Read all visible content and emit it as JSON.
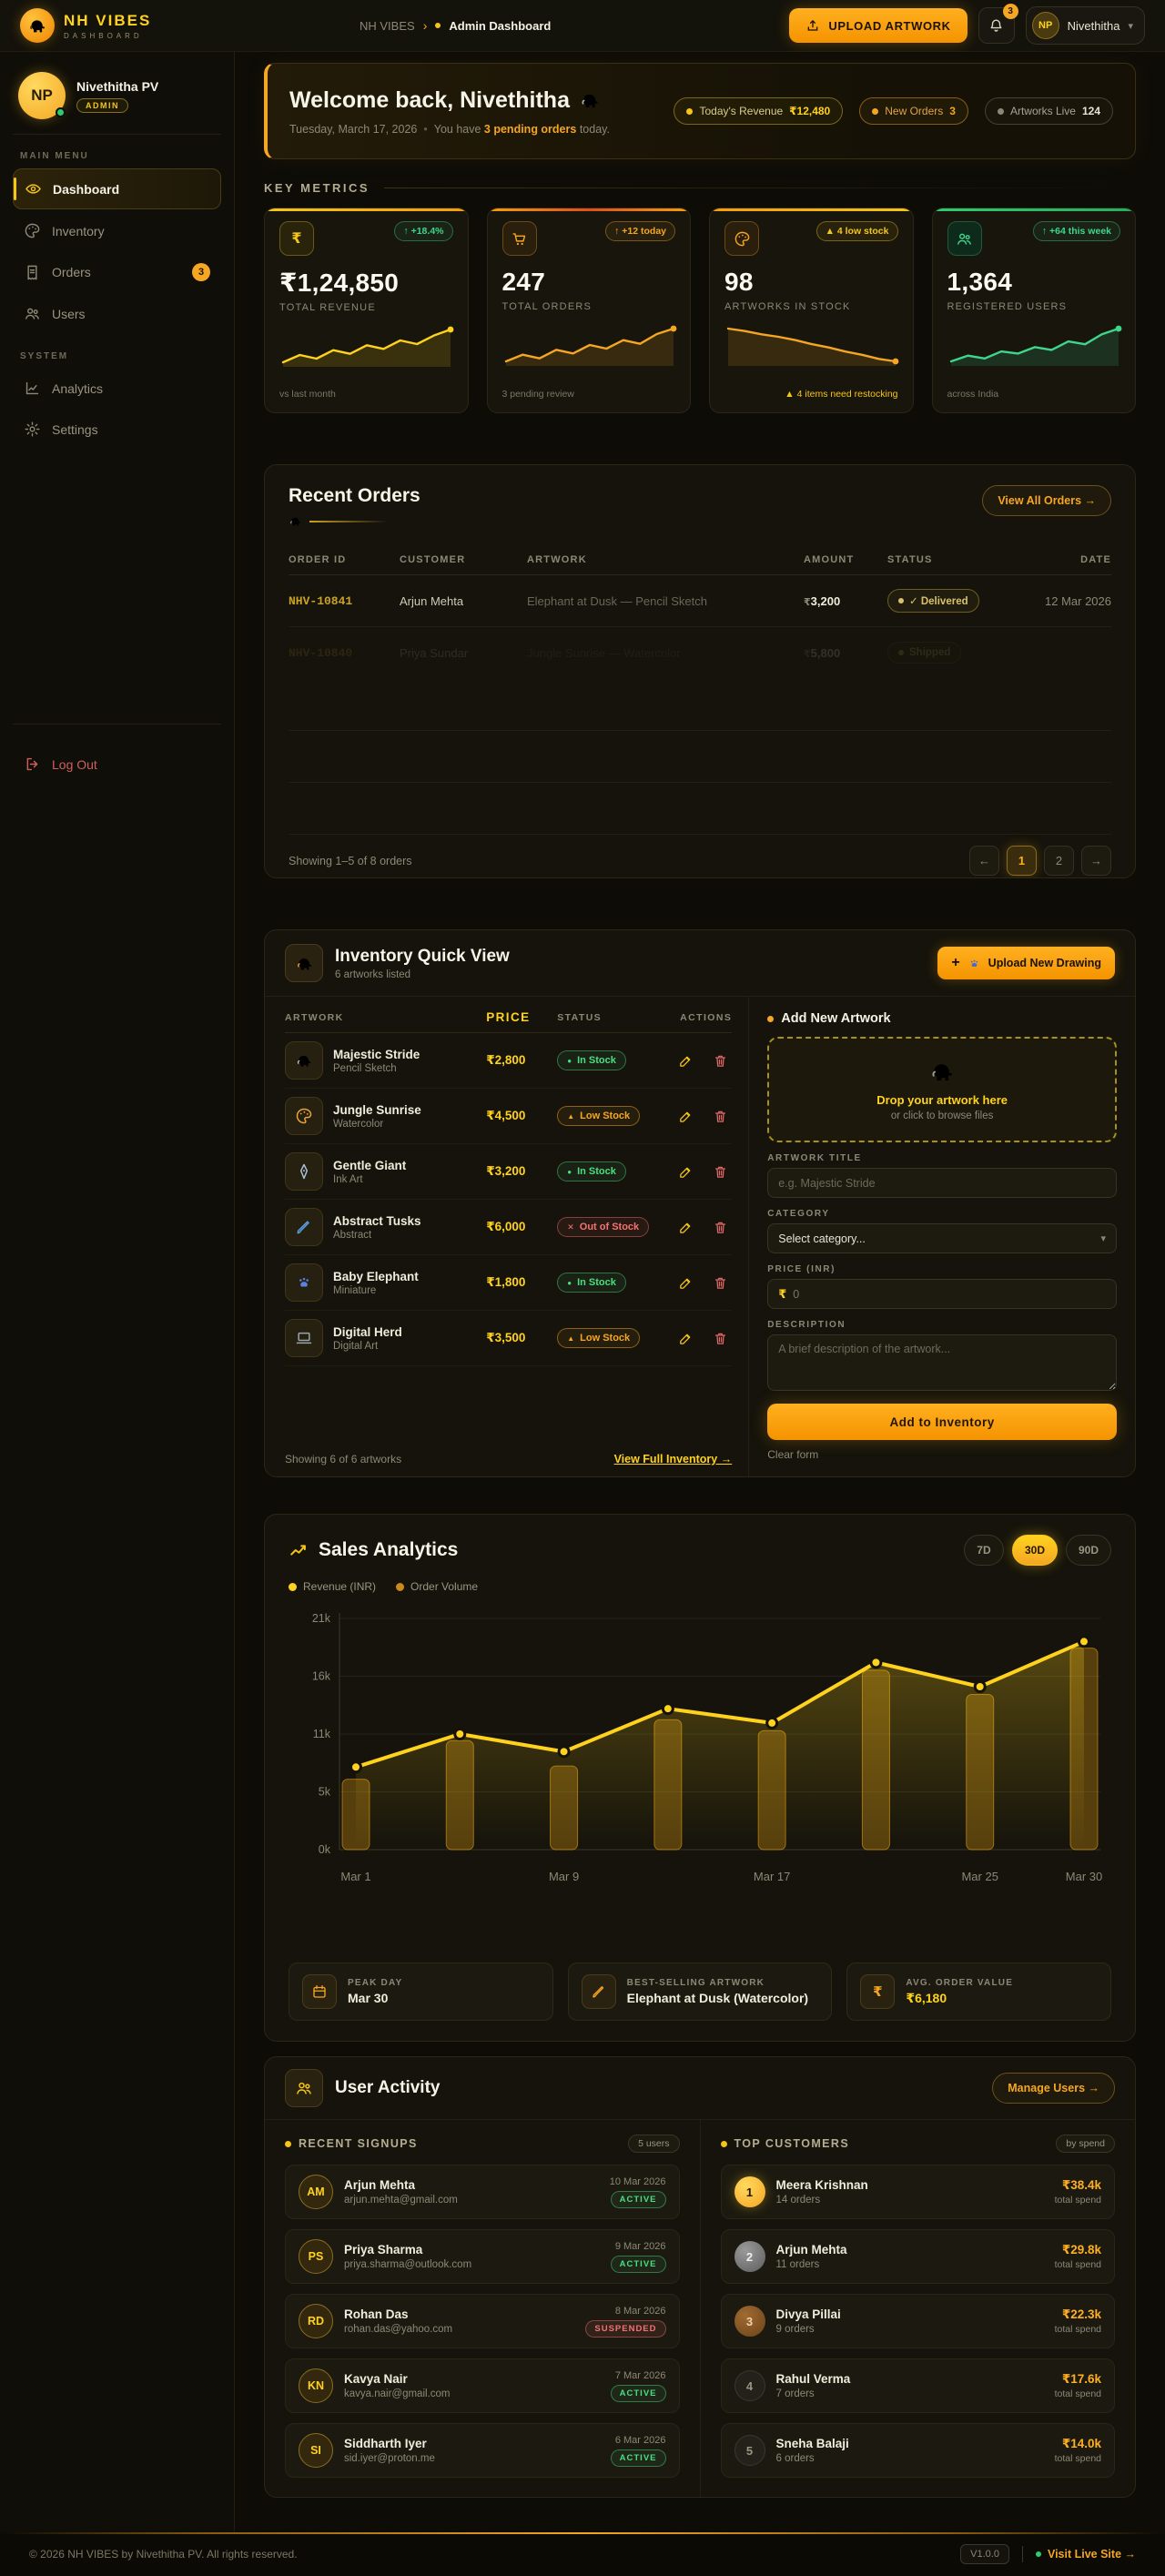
{
  "navbar": {
    "logo_title": "NH VIBES",
    "logo_subtitle": "DASHBOARD",
    "breadcrumb_root": "NH VIBES",
    "breadcrumb_sep": "›",
    "breadcrumb_current": "Admin Dashboard",
    "upload_button": "UPLOAD ARTWORK",
    "notification_count": "3",
    "user_initials": "NP",
    "user_name": "Nivethitha",
    "chevron": "▾"
  },
  "sidebar": {
    "profile": {
      "initials": "NP",
      "name": "Nivethitha PV",
      "role": "ADMIN"
    },
    "main_menu_label": "MAIN MENU",
    "system_label": "SYSTEM",
    "items": [
      {
        "label": "Dashboard"
      },
      {
        "label": "Inventory"
      },
      {
        "label": "Orders",
        "badge": "3"
      },
      {
        "label": "Users"
      },
      {
        "label": "Analytics"
      },
      {
        "label": "Settings"
      }
    ],
    "logout_label": "Log Out"
  },
  "welcome": {
    "title": "Welcome back, Nivethitha",
    "date": "Tuesday, March 17, 2026",
    "sep": "•",
    "msg1": "You have",
    "msg_bold": "3 pending orders",
    "msg2": "today.",
    "pills": [
      {
        "label": "Today's Revenue",
        "value": "₹12,480"
      },
      {
        "label": "New Orders",
        "value": "3"
      },
      {
        "label": "Artworks Live",
        "value": "124"
      }
    ]
  },
  "metrics": {
    "section_title": "KEY METRICS",
    "cards": [
      {
        "icon_glyph": "₹",
        "badge": "↑ +18.4%",
        "value": "₹1,24,850",
        "label": "TOTAL REVENUE",
        "foot": "vs last month",
        "spark": [
          3,
          4.2,
          3.6,
          5,
          4.4,
          5.8,
          5.2,
          6.6,
          6,
          7.4,
          8.4
        ],
        "spark_color": "#ffd21e"
      },
      {
        "icon_glyph": "cart",
        "badge": "↑ +12 today",
        "value": "247",
        "label": "TOTAL ORDERS",
        "foot": "3 pending review",
        "spark": [
          2.5,
          3.6,
          3,
          4.4,
          3.8,
          5.2,
          4.6,
          6,
          5.4,
          7,
          7.9
        ],
        "spark_color": "#f5a623"
      },
      {
        "icon_glyph": "palette",
        "badge": "▲ 4 low stock",
        "value": "98",
        "label": "ARTWORKS IN STOCK",
        "foot": "▲ 4 items need restocking",
        "spark": [
          8,
          7.7,
          7.3,
          7,
          6.6,
          6.1,
          5.7,
          5.2,
          4.8,
          4.3,
          4
        ],
        "spark_color": "#f5a623"
      },
      {
        "icon_glyph": "users",
        "badge": "↑ +64 this week",
        "value": "1,364",
        "label": "REGISTERED USERS",
        "foot": "across India",
        "spark": [
          2.6,
          3.4,
          3,
          4,
          3.7,
          4.6,
          4.2,
          5.4,
          5,
          6.4,
          7.2
        ],
        "spark_color": "#3fd68c"
      }
    ]
  },
  "orders": {
    "title": "Recent Orders",
    "view_all": "View All Orders →",
    "columns": [
      "ORDER ID",
      "CUSTOMER",
      "ARTWORK",
      "AMOUNT",
      "STATUS",
      "DATE"
    ],
    "rows": [
      {
        "id": "NHV-10841",
        "customer": "Arjun Mehta",
        "artwork": "Elephant at Dusk — Pencil Sketch",
        "amount_sym": "₹",
        "amount": "3,200",
        "status": "✓ Delivered",
        "date": "12 Mar 2026"
      },
      {
        "id": "NHV-10840",
        "customer": "Priya Sundar",
        "artwork": "Jungle Sunrise — Watercolor",
        "amount_sym": "₹",
        "amount": "5,800",
        "status": "Shipped",
        "date": ""
      }
    ],
    "footer": "Showing 1–5 of 8 orders",
    "pagination": {
      "prev": "←",
      "pages": [
        "1",
        "2"
      ],
      "next": "→"
    }
  },
  "inventory": {
    "title": "Inventory Quick View",
    "subtitle": "6 artworks listed",
    "upload_button": "Upload New Drawing",
    "upload_plus": "+",
    "columns": [
      "ARTWORK",
      "PRICE",
      "STATUS",
      "ACTIONS"
    ],
    "rows": [
      {
        "title": "Majestic Stride",
        "subtitle": "Pencil Sketch",
        "price": "₹2,800",
        "status_icon": "●",
        "status": "In Stock"
      },
      {
        "title": "Jungle Sunrise",
        "subtitle": "Watercolor",
        "price": "₹4,500",
        "status_icon": "▲",
        "status": "Low Stock"
      },
      {
        "title": "Gentle Giant",
        "subtitle": "Ink Art",
        "price": "₹3,200",
        "status_icon": "●",
        "status": "In Stock"
      },
      {
        "title": "Abstract Tusks",
        "subtitle": "Abstract",
        "price": "₹6,000",
        "status_icon": "✕",
        "status": "Out of Stock"
      },
      {
        "title": "Baby Elephant",
        "subtitle": "Miniature",
        "price": "₹1,800",
        "status_icon": "●",
        "status": "In Stock"
      },
      {
        "title": "Digital Herd",
        "subtitle": "Digital Art",
        "price": "₹3,500",
        "status_icon": "▲",
        "status": "Low Stock"
      }
    ],
    "footer": "Showing 6 of 6 artworks",
    "view_full": "View Full Inventory →",
    "form": {
      "title": "Add New Artwork",
      "drop_title": "Drop your artwork here",
      "drop_subtitle": "or click to browse files",
      "title_label": "ARTWORK TITLE",
      "title_placeholder": "e.g. Majestic Stride",
      "category_label": "CATEGORY",
      "category_value": "Select category...",
      "price_label": "PRICE (INR)",
      "price_prefix": "₹",
      "price_placeholder": "0",
      "description_label": "DESCRIPTION",
      "description_placeholder": "A brief description of the artwork...",
      "submit": "Add to Inventory",
      "clear": "Clear form"
    }
  },
  "sales": {
    "title": "Sales Analytics",
    "ranges": [
      "7D",
      "30D",
      "90D"
    ],
    "active_range": "30D",
    "legend": [
      {
        "label": "Revenue (INR)",
        "color": "#ffd21e"
      },
      {
        "label": "Order Volume",
        "color": "#c98a1b"
      }
    ],
    "stats": [
      {
        "label": "PEAK DAY",
        "value": "Mar 30"
      },
      {
        "label": "BEST-SELLING ARTWORK",
        "value": "Elephant at Dusk (Watercolor)"
      },
      {
        "label": "AVG. ORDER VALUE",
        "value": "₹6,180"
      }
    ]
  },
  "chart_data": {
    "type": "line",
    "title": "Sales Analytics",
    "x": [
      "Mar 1",
      "Mar 5",
      "Mar 9",
      "Mar 13",
      "Mar 17",
      "Mar 21",
      "Mar 25",
      "Mar 30"
    ],
    "x_tick_labels": [
      "Mar 1",
      "Mar 9",
      "Mar 17",
      "Mar 25",
      "Mar 30"
    ],
    "x_tick_indices": [
      0,
      2,
      4,
      6,
      7
    ],
    "series": [
      {
        "name": "Revenue (INR)",
        "render": "line",
        "color": "#ffd21e",
        "values": [
          7500,
          10500,
          8900,
          12800,
          11500,
          17000,
          14800,
          18900
        ]
      },
      {
        "name": "Order Volume",
        "render": "bar",
        "color": "#e89b0c",
        "values": [
          6400,
          9900,
          7600,
          11800,
          10800,
          16300,
          14100,
          18300
        ]
      }
    ],
    "ylim": [
      0,
      21000
    ],
    "ytick_labels": [
      "0k",
      "5k",
      "11k",
      "16k",
      "21k"
    ],
    "grid": true,
    "legend_position": "top-left"
  },
  "activity": {
    "title": "User Activity",
    "manage_button": "Manage Users →",
    "signups": {
      "header": "RECENT SIGNUPS",
      "badge": "5 users",
      "items": [
        {
          "initials": "AM",
          "name": "Arjun Mehta",
          "email": "arjun.mehta@gmail.com",
          "date": "10 Mar 2026",
          "status": "ACTIVE"
        },
        {
          "initials": "PS",
          "name": "Priya Sharma",
          "email": "priya.sharma@outlook.com",
          "date": "9 Mar 2026",
          "status": "ACTIVE"
        },
        {
          "initials": "RD",
          "name": "Rohan Das",
          "email": "rohan.das@yahoo.com",
          "date": "8 Mar 2026",
          "status": "SUSPENDED"
        },
        {
          "initials": "KN",
          "name": "Kavya Nair",
          "email": "kavya.nair@gmail.com",
          "date": "7 Mar 2026",
          "status": "ACTIVE"
        },
        {
          "initials": "SI",
          "name": "Siddharth Iyer",
          "email": "sid.iyer@proton.me",
          "date": "6 Mar 2026",
          "status": "ACTIVE"
        }
      ]
    },
    "customers": {
      "header": "TOP CUSTOMERS",
      "badge": "by spend",
      "items": [
        {
          "rank": "1",
          "name": "Meera Krishnan",
          "orders": "14 orders",
          "spend": "₹38.4k",
          "spend_label": "total spend",
          "bar_pct": 100
        },
        {
          "rank": "2",
          "name": "Arjun Mehta",
          "orders": "11 orders",
          "spend": "₹29.8k",
          "spend_label": "total spend",
          "bar_pct": 77
        },
        {
          "rank": "3",
          "name": "Divya Pillai",
          "orders": "9 orders",
          "spend": "₹22.3k",
          "spend_label": "total spend",
          "bar_pct": 58
        },
        {
          "rank": "4",
          "name": "Rahul Verma",
          "orders": "7 orders",
          "spend": "₹17.6k",
          "spend_label": "total spend",
          "bar_pct": 46
        },
        {
          "rank": "5",
          "name": "Sneha Balaji",
          "orders": "6 orders",
          "spend": "₹14.0k",
          "spend_label": "total spend",
          "bar_pct": 36
        }
      ]
    }
  },
  "footer": {
    "copyright": "© 2026 NH VIBES by Nivethitha PV. All rights reserved.",
    "version": "V1.0.0",
    "live_link": "Visit Live Site →"
  }
}
